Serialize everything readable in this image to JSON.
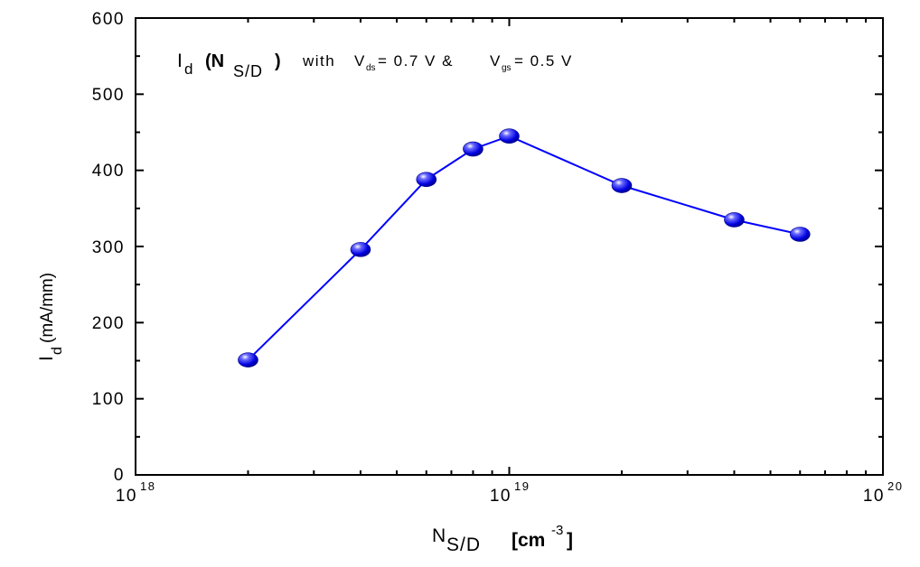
{
  "chart_data": {
    "type": "line",
    "x_scale": "log",
    "xlim": [
      1e+18,
      1e+20
    ],
    "ylim": [
      0,
      600
    ],
    "x_ticks": [
      {
        "mantissa": "10",
        "exponent": "18",
        "value": 1e+18
      },
      {
        "mantissa": "10",
        "exponent": "19",
        "value": 1e+19
      },
      {
        "mantissa": "10",
        "exponent": "20",
        "value": 1e+20
      }
    ],
    "y_ticks": [
      "0",
      "100",
      "200",
      "300",
      "400",
      "500",
      "600"
    ],
    "xlabel": {
      "main": "N",
      "sub": "S/D",
      "unit_open": "[cm",
      "unit_exp": "-3",
      "unit_close": "]"
    },
    "ylabel": {
      "main": "I",
      "sub": "d",
      "unit": "(mA/mm)"
    },
    "annotation": {
      "i": "I",
      "i_sub": "d",
      "n_open": "(N",
      "n_sub": "S/D",
      "n_close": ")",
      "with": "with",
      "v1": "V",
      "v1_sub": "ds",
      "v1_val": "= 0.7 V &",
      "v2": "V",
      "v2_sub": "gs",
      "v2_val": "= 0.5 V"
    },
    "series": [
      {
        "color": "#0000ff",
        "points": [
          {
            "x": 2e+18,
            "y": 151
          },
          {
            "x": 4e+18,
            "y": 296
          },
          {
            "x": 6e+18,
            "y": 388
          },
          {
            "x": 8e+18,
            "y": 428
          },
          {
            "x": 1e+19,
            "y": 445
          },
          {
            "x": 2e+19,
            "y": 380
          },
          {
            "x": 4e+19,
            "y": 335
          },
          {
            "x": 6e+19,
            "y": 316
          }
        ]
      }
    ],
    "grid": false
  }
}
